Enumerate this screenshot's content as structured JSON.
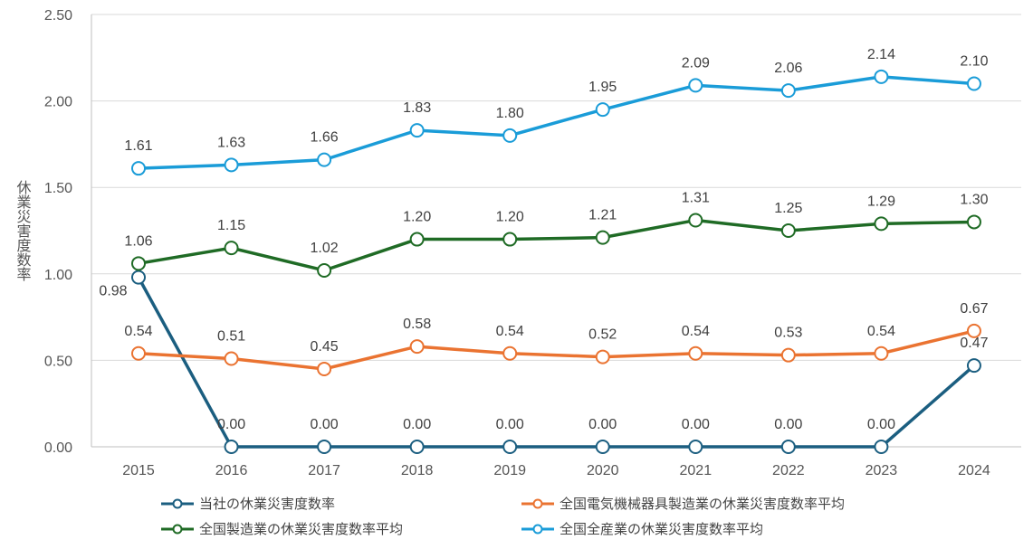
{
  "chart_data": {
    "type": "line",
    "x": [
      "2015",
      "2016",
      "2017",
      "2018",
      "2019",
      "2020",
      "2021",
      "2022",
      "2023",
      "2024"
    ],
    "ylabel": "休業災害度数率",
    "ylim": [
      0,
      2.5
    ],
    "yticks": [
      "0.00",
      "0.50",
      "1.00",
      "1.50",
      "2.00",
      "2.50"
    ],
    "grid": true,
    "legend_position": "bottom",
    "series": [
      {
        "name": "当社の休業災害度数率",
        "color": "#1b5e80",
        "values": [
          0.98,
          0.0,
          0.0,
          0.0,
          0.0,
          0.0,
          0.0,
          0.0,
          0.0,
          0.47
        ]
      },
      {
        "name": "全国電気機械器具製造業の休業災害度数率平均",
        "color": "#ea7331",
        "values": [
          0.54,
          0.51,
          0.45,
          0.58,
          0.54,
          0.52,
          0.54,
          0.53,
          0.54,
          0.67
        ]
      },
      {
        "name": "全国製造業の休業災害度数率平均",
        "color": "#1f6b25",
        "values": [
          1.06,
          1.15,
          1.02,
          1.2,
          1.2,
          1.21,
          1.31,
          1.25,
          1.29,
          1.3
        ]
      },
      {
        "name": "全国全産業の休業災害度数率平均",
        "color": "#1a9cd8",
        "values": [
          1.61,
          1.63,
          1.66,
          1.83,
          1.8,
          1.95,
          2.09,
          2.06,
          2.14,
          2.1
        ]
      }
    ]
  }
}
